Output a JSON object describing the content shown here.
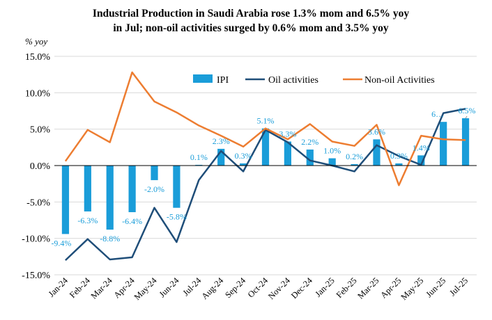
{
  "colors": {
    "ipi": "#1a9dd9",
    "oil": "#1f4e79",
    "nonoil": "#ed7d31",
    "grid": "#d9d9d9",
    "axis": "#000000"
  },
  "chart_data": {
    "type": "bar",
    "title_line1": "Industrial Production in Saudi Arabia rose 1.3% mom and 6.5% yoy",
    "title_line2": "in Jul; non-oil activities surged by 0.6% mom and 3.5% yoy",
    "unit_label": "% yoy",
    "ylim": [
      -15,
      15
    ],
    "yticks": [
      -15,
      -10,
      -5,
      0,
      5,
      10,
      15
    ],
    "ytick_labels": [
      "-15.0%",
      "-10.0%",
      "-5.0%",
      "0.0%",
      "5.0%",
      "10.0%",
      "15.0%"
    ],
    "grid": true,
    "legend_position": "top-right",
    "categories": [
      "Jan-24",
      "Feb-24",
      "Mar-24",
      "Apr-24",
      "May-24",
      "Jun-24",
      "Jul-24",
      "Aug-24",
      "Sep-24",
      "Oct-24",
      "Nov-24",
      "Dec-24",
      "Jan-25",
      "Feb-25",
      "Mar-25",
      "Apr-25",
      "May-25",
      "Jun-25",
      "Jul-25"
    ],
    "series": [
      {
        "name": "IPI",
        "kind": "bar",
        "values": [
          -9.4,
          -6.3,
          -8.8,
          -6.4,
          -2.0,
          -5.8,
          0.1,
          2.3,
          0.3,
          5.1,
          3.3,
          2.2,
          1.0,
          0.2,
          3.6,
          0.3,
          1.4,
          6.0,
          6.5
        ],
        "labels": [
          "-9.4%",
          "-6.3%",
          "-8.8%",
          "-6.4%",
          "-2.0%",
          "-5.8%",
          "0.1%",
          "2.3%",
          "0.3%",
          "5.1%",
          "3.3%",
          "2.2%",
          "1.0%",
          "0.2%",
          "3.6%",
          "0.3%",
          "1.4%",
          "6…",
          "6.5%"
        ]
      },
      {
        "name": "Oil activities",
        "kind": "line",
        "values": [
          -13.0,
          -10.1,
          -12.9,
          -12.6,
          -5.8,
          -10.5,
          -2.0,
          2.0,
          -0.8,
          4.9,
          3.2,
          0.7,
          0.0,
          -0.8,
          2.8,
          1.3,
          0.1,
          7.2,
          7.8
        ]
      },
      {
        "name": "Non-oil Activities",
        "kind": "line",
        "values": [
          0.6,
          4.9,
          3.2,
          12.8,
          8.8,
          7.3,
          5.5,
          4.1,
          2.6,
          5.1,
          3.6,
          5.7,
          3.3,
          2.7,
          5.6,
          -2.7,
          4.1,
          3.6,
          3.5
        ]
      }
    ]
  }
}
